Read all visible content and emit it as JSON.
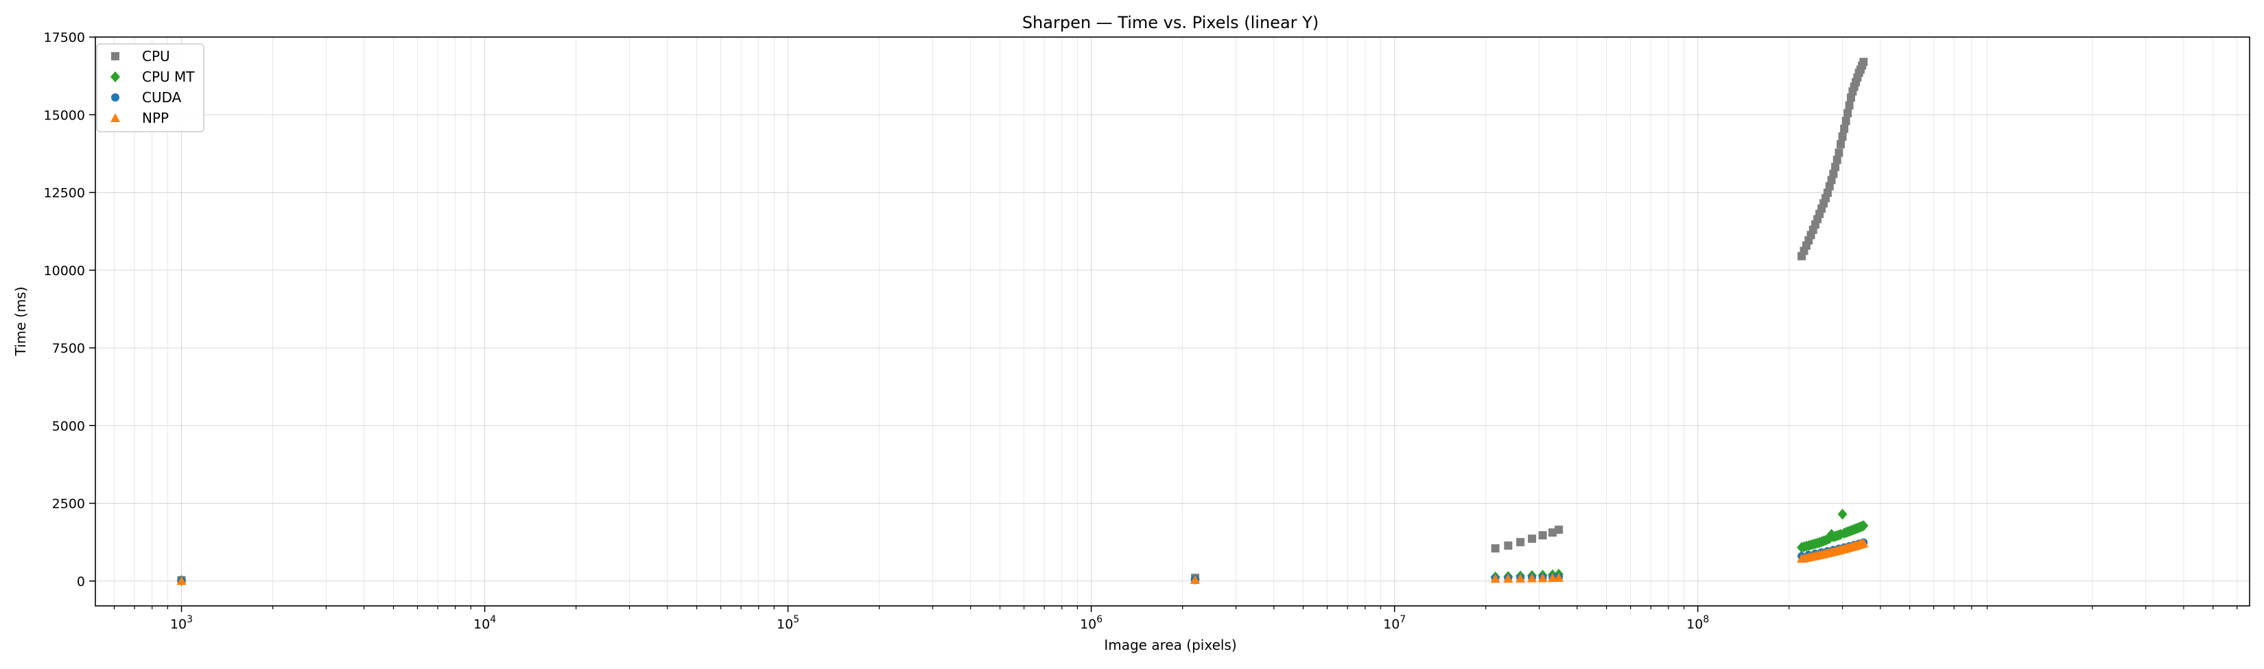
{
  "chart_data": {
    "type": "scatter",
    "title": "Sharpen — Time vs. Pixels (linear Y)",
    "xlabel": "Image area (pixels)",
    "ylabel": "Time (ms)",
    "xscale": "log",
    "yscale": "linear",
    "xlim": [
      520,
      6600000000
    ],
    "ylim": [
      -800,
      17500
    ],
    "grid": true,
    "legend_position": "top-left",
    "x_ticks": [
      {
        "value": 1000,
        "base": "10",
        "exp": "3"
      },
      {
        "value": 10000,
        "base": "10",
        "exp": "4"
      },
      {
        "value": 100000,
        "base": "10",
        "exp": "5"
      },
      {
        "value": 1000000,
        "base": "10",
        "exp": "6"
      },
      {
        "value": 10000000,
        "base": "10",
        "exp": "7"
      },
      {
        "value": 100000000,
        "base": "10",
        "exp": "8"
      }
    ],
    "y_ticks": [
      {
        "value": 0,
        "label": "0"
      },
      {
        "value": 2500,
        "label": "2500"
      },
      {
        "value": 5000,
        "label": "5000"
      },
      {
        "value": 7500,
        "label": "7500"
      },
      {
        "value": 10000,
        "label": "10000"
      },
      {
        "value": 12500,
        "label": "12500"
      },
      {
        "value": 15000,
        "label": "15000"
      },
      {
        "value": 17500,
        "label": "17500"
      }
    ],
    "series": [
      {
        "name": "CPU",
        "marker": "square",
        "color": "#7f7f7f",
        "x": [
          1000,
          2200000,
          21500000,
          23700000,
          26000000,
          28400000,
          30800000,
          33200000,
          34800000,
          220000000,
          224000000,
          228000000,
          232000000,
          236000000,
          240000000,
          244000000,
          248000000,
          252000000,
          256000000,
          260000000,
          264000000,
          268000000,
          272000000,
          276000000,
          280000000,
          284000000,
          288000000,
          292000000,
          296000000,
          300000000,
          304000000,
          308000000,
          312000000,
          316000000,
          320000000,
          324000000,
          328000000,
          332000000,
          336000000,
          340000000,
          344000000,
          348000000,
          352000000
        ],
        "y": [
          25,
          100,
          1050,
          1140,
          1250,
          1360,
          1470,
          1560,
          1650,
          10450,
          10620,
          10790,
          10960,
          11130,
          11300,
          11470,
          11640,
          11810,
          11980,
          12150,
          12320,
          12490,
          12700,
          12900,
          13100,
          13320,
          13550,
          13780,
          14050,
          14300,
          14550,
          14800,
          15050,
          15300,
          15550,
          15750,
          15900,
          16050,
          16200,
          16350,
          16450,
          16580,
          16700
        ]
      },
      {
        "name": "CPU MT",
        "marker": "diamond",
        "color": "#2ca02c",
        "x": [
          1000,
          2200000,
          21500000,
          23700000,
          26000000,
          28400000,
          30800000,
          33200000,
          34800000,
          220000000,
          224000000,
          228000000,
          232000000,
          236000000,
          240000000,
          244000000,
          248000000,
          252000000,
          256000000,
          260000000,
          264000000,
          268000000,
          272000000,
          276000000,
          280000000,
          284000000,
          288000000,
          292000000,
          296000000,
          300000000,
          304000000,
          308000000,
          312000000,
          316000000,
          320000000,
          324000000,
          328000000,
          332000000,
          336000000,
          340000000,
          344000000,
          348000000,
          352000000
        ],
        "y": [
          15,
          55,
          130,
          145,
          160,
          175,
          185,
          200,
          215,
          1080,
          1100,
          1120,
          1140,
          1160,
          1180,
          1200,
          1220,
          1240,
          1260,
          1290,
          1310,
          1340,
          1370,
          1500,
          1420,
          1440,
          1460,
          1480,
          1500,
          2150,
          1540,
          1560,
          1580,
          1600,
          1620,
          1640,
          1660,
          1680,
          1700,
          1720,
          1740,
          1760,
          1780
        ]
      },
      {
        "name": "CUDA",
        "marker": "circle",
        "color": "#1f77b4",
        "x": [
          1000,
          2200000,
          21500000,
          23700000,
          26000000,
          28400000,
          30800000,
          33200000,
          34800000,
          220000000,
          232000000,
          244000000,
          256000000,
          268000000,
          280000000,
          292000000,
          304000000,
          316000000,
          328000000,
          340000000,
          352000000
        ],
        "y": [
          20,
          60,
          95,
          100,
          105,
          110,
          115,
          120,
          125,
          800,
          840,
          880,
          920,
          960,
          1000,
          1040,
          1080,
          1120,
          1160,
          1200,
          1240
        ]
      },
      {
        "name": "NPP",
        "marker": "triangle",
        "color": "#ff7f0e",
        "x": [
          1000,
          2200000,
          21500000,
          23700000,
          26000000,
          28400000,
          30800000,
          33200000,
          34800000,
          220000000,
          224000000,
          228000000,
          232000000,
          236000000,
          240000000,
          244000000,
          248000000,
          252000000,
          256000000,
          260000000,
          264000000,
          268000000,
          272000000,
          276000000,
          280000000,
          284000000,
          288000000,
          292000000,
          296000000,
          300000000,
          304000000,
          308000000,
          312000000,
          316000000,
          320000000,
          324000000,
          328000000,
          332000000,
          336000000,
          340000000,
          344000000,
          348000000,
          352000000
        ],
        "y": [
          5,
          40,
          75,
          80,
          85,
          90,
          95,
          100,
          105,
          720,
          735,
          750,
          765,
          780,
          795,
          810,
          825,
          840,
          855,
          870,
          885,
          900,
          915,
          930,
          945,
          960,
          975,
          990,
          1005,
          1020,
          1035,
          1050,
          1065,
          1080,
          1095,
          1110,
          1125,
          1140,
          1155,
          1170,
          1185,
          1200,
          1215
        ]
      }
    ]
  }
}
